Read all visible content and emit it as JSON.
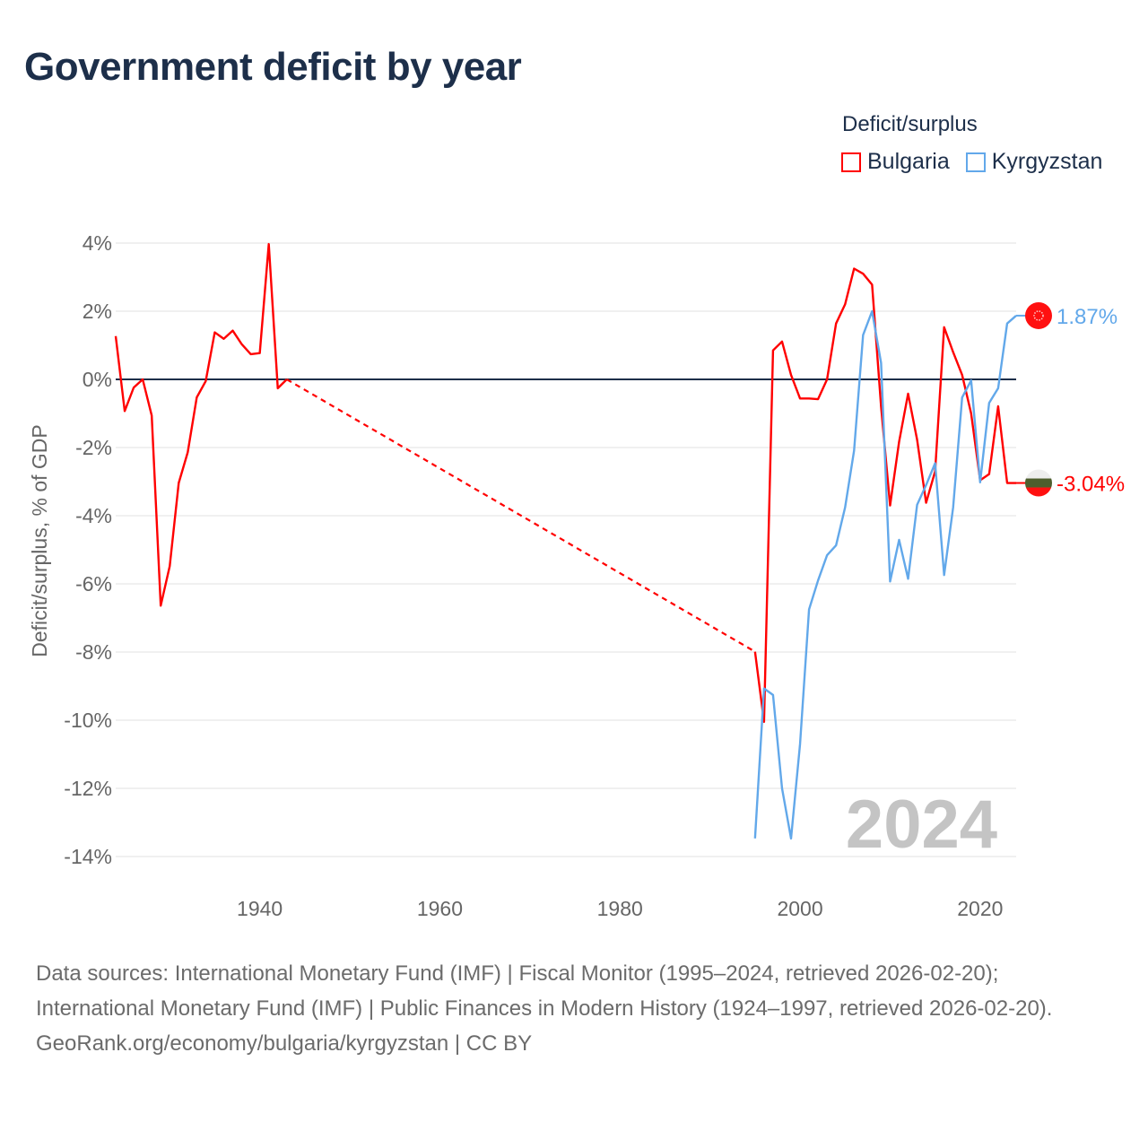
{
  "title": "Government deficit by year",
  "legend": {
    "title": "Deficit/surplus",
    "items": [
      {
        "name": "Bulgaria",
        "color": "#ff0000"
      },
      {
        "name": "Kyrgyzstan",
        "color": "#62a8ea"
      }
    ]
  },
  "chart_data": {
    "type": "line",
    "title": "Government deficit by year",
    "xlabel": "",
    "ylabel": "Deficit/surplus, % of GDP",
    "xlim": [
      1924,
      2024
    ],
    "ylim": [
      -14,
      4
    ],
    "xticks": [
      1940,
      1960,
      1980,
      2000,
      2020
    ],
    "yticks": [
      4,
      2,
      0,
      -2,
      -4,
      -6,
      -8,
      -10,
      -12,
      -14
    ],
    "ytick_labels": [
      "4%",
      "2%",
      "0%",
      "-2%",
      "-4%",
      "-6%",
      "-8%",
      "-10%",
      "-12%",
      "-14%"
    ],
    "watermark_year": "2024",
    "series": [
      {
        "name": "Bulgaria",
        "color": "#ff0000",
        "end_label": "-3.04%",
        "points": [
          [
            1924,
            1.27
          ],
          [
            1925,
            -0.93
          ],
          [
            1926,
            -0.24
          ],
          [
            1927,
            0
          ],
          [
            1928,
            -1.06
          ],
          [
            1929,
            -6.64
          ],
          [
            1930,
            -5.48
          ],
          [
            1931,
            -3.04
          ],
          [
            1932,
            -2.14
          ],
          [
            1933,
            -0.53
          ],
          [
            1934,
            -0.05
          ],
          [
            1935,
            1.38
          ],
          [
            1936,
            1.19
          ],
          [
            1937,
            1.43
          ],
          [
            1938,
            1.03
          ],
          [
            1939,
            0.74
          ],
          [
            1940,
            0.77
          ],
          [
            1941,
            3.97
          ],
          [
            1942,
            -0.26
          ],
          [
            1943,
            0
          ],
          [
            1995,
            -7.99
          ],
          [
            1996,
            -10.05
          ],
          [
            1997,
            0.85
          ],
          [
            1998,
            1.11
          ],
          [
            1999,
            0.13
          ],
          [
            2000,
            -0.56
          ],
          [
            2001,
            -0.56
          ],
          [
            2002,
            -0.58
          ],
          [
            2003,
            0
          ],
          [
            2004,
            1.64
          ],
          [
            2005,
            2.2
          ],
          [
            2006,
            3.25
          ],
          [
            2007,
            3.1
          ],
          [
            2008,
            2.78
          ],
          [
            2009,
            -0.8
          ],
          [
            2010,
            -3.7
          ],
          [
            2011,
            -1.83
          ],
          [
            2012,
            -0.42
          ],
          [
            2013,
            -1.77
          ],
          [
            2014,
            -3.62
          ],
          [
            2015,
            -2.7
          ],
          [
            2016,
            1.53
          ],
          [
            2017,
            0.8
          ],
          [
            2018,
            0.13
          ],
          [
            2019,
            -1.0
          ],
          [
            2020,
            -2.96
          ],
          [
            2021,
            -2.78
          ],
          [
            2022,
            -0.79
          ],
          [
            2023,
            -3.04
          ],
          [
            2024,
            -3.04
          ]
        ],
        "gap_after": 1943
      },
      {
        "name": "Kyrgyzstan",
        "color": "#62a8ea",
        "end_label": "1.87%",
        "points": [
          [
            1995,
            -13.47
          ],
          [
            1996,
            -9.07
          ],
          [
            1997,
            -9.26
          ],
          [
            1998,
            -12.0
          ],
          [
            1999,
            -13.47
          ],
          [
            2000,
            -10.7
          ],
          [
            2001,
            -6.75
          ],
          [
            2002,
            -5.9
          ],
          [
            2003,
            -5.16
          ],
          [
            2004,
            -4.87
          ],
          [
            2005,
            -3.76
          ],
          [
            2006,
            -2.09
          ],
          [
            2007,
            1.3
          ],
          [
            2008,
            2.0
          ],
          [
            2009,
            0.48
          ],
          [
            2010,
            -5.93
          ],
          [
            2011,
            -4.71
          ],
          [
            2012,
            -5.85
          ],
          [
            2013,
            -3.68
          ],
          [
            2014,
            -3.1
          ],
          [
            2015,
            -2.46
          ],
          [
            2016,
            -5.74
          ],
          [
            2017,
            -3.76
          ],
          [
            2018,
            -0.53
          ],
          [
            2019,
            -0.03
          ],
          [
            2020,
            -3.02
          ],
          [
            2021,
            -0.69
          ],
          [
            2022,
            -0.26
          ],
          [
            2023,
            1.64
          ],
          [
            2024,
            1.87
          ]
        ]
      }
    ]
  },
  "footer": {
    "sources": "Data sources: International Monetary Fund (IMF) | Fiscal Monitor (1995–2024, retrieved 2026-02-20); International Monetary Fund (IMF) | Public Finances in Modern History (1924–1997, retrieved 2026-02-20).",
    "credit": "GeoRank.org/economy/bulgaria/kyrgyzstan | CC BY"
  }
}
